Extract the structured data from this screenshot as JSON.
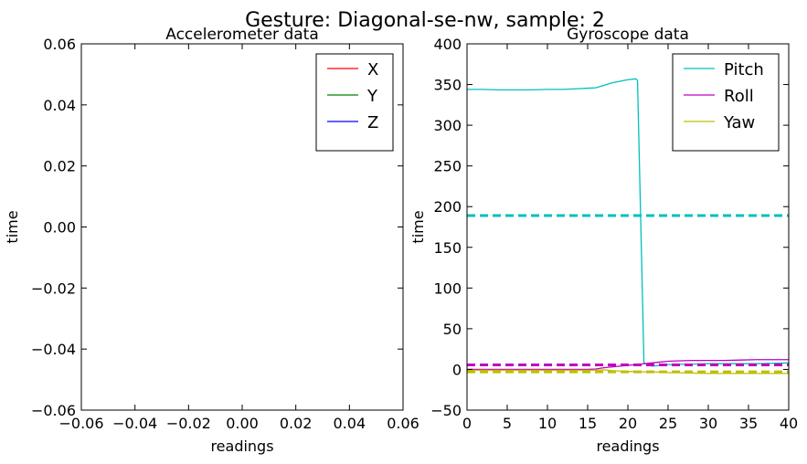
{
  "figure": {
    "title": "Gesture: Diagonal-se-nw, sample: 2"
  },
  "colors": {
    "X": "#ff0000",
    "Y": "#008000",
    "Z": "#0000ff",
    "Pitch": "#00bfbf",
    "Roll": "#bf00bf",
    "Yaw": "#bfbf00"
  },
  "chart_data": [
    {
      "type": "line",
      "title": "Accelerometer data",
      "xlabel": "readings",
      "ylabel": "time",
      "xlim": [
        -0.06,
        0.06
      ],
      "ylim": [
        -0.06,
        0.06
      ],
      "xticks": [
        "−0.06",
        "−0.04",
        "−0.02",
        "0.00",
        "0.02",
        "0.04",
        "0.06"
      ],
      "yticks": [
        "0.06",
        "0.04",
        "0.02",
        "0.00",
        "−0.02",
        "−0.04",
        "−0.06"
      ],
      "grid": false,
      "legend_position": "top-right",
      "series": [
        {
          "name": "X",
          "color": "#ff0000",
          "x": [],
          "y": []
        },
        {
          "name": "Y",
          "color": "#008000",
          "x": [],
          "y": []
        },
        {
          "name": "Z",
          "color": "#0000ff",
          "x": [],
          "y": []
        }
      ]
    },
    {
      "type": "line",
      "title": "Gyroscope data",
      "xlabel": "readings",
      "ylabel": "time",
      "xlim": [
        0,
        40
      ],
      "ylim": [
        -50,
        400
      ],
      "xticks": [
        "0",
        "5",
        "10",
        "15",
        "20",
        "25",
        "30",
        "35",
        "40"
      ],
      "yticks": [
        "400",
        "350",
        "300",
        "250",
        "200",
        "150",
        "100",
        "50",
        "0",
        "−50"
      ],
      "grid": false,
      "legend_position": "top-right",
      "series": [
        {
          "name": "Pitch",
          "color": "#00bfbf",
          "x": [
            0,
            2,
            4,
            6,
            8,
            10,
            12,
            14,
            15,
            16,
            17,
            18,
            19,
            20,
            21,
            21.2,
            22,
            23,
            24,
            25,
            26,
            27,
            28,
            30,
            32,
            34,
            36,
            38,
            40
          ],
          "y": [
            344,
            344,
            343.5,
            343.5,
            343.5,
            344,
            344,
            345,
            345.5,
            346,
            349,
            352,
            354,
            356,
            357,
            355,
            8,
            4,
            5,
            6,
            6,
            6.5,
            6.5,
            7,
            7,
            7,
            7,
            7.5,
            8
          ]
        },
        {
          "name": "Roll",
          "color": "#bf00bf",
          "x": [
            0,
            5,
            10,
            15,
            16,
            17,
            18,
            19,
            20,
            21,
            22,
            23,
            24,
            25,
            26,
            28,
            30,
            32,
            34,
            36,
            38,
            40
          ],
          "y": [
            0,
            0,
            0,
            0,
            0.5,
            2,
            3,
            4,
            5,
            6,
            7,
            8,
            9,
            10,
            10.5,
            11,
            11,
            11,
            11.5,
            12,
            12,
            12
          ]
        },
        {
          "name": "Yaw",
          "color": "#bfbf00",
          "x": [
            0,
            5,
            10,
            15,
            16,
            17,
            18,
            19,
            20,
            21,
            22,
            23,
            24,
            25,
            26,
            28,
            30,
            32,
            34,
            36,
            38,
            40
          ],
          "y": [
            -1,
            -1,
            -1,
            -1,
            -1,
            -0.5,
            -1.5,
            -2,
            -2.5,
            -2.5,
            -3,
            -3,
            -3.5,
            -4,
            -4,
            -4.5,
            -5,
            -5,
            -5,
            -5,
            -5,
            -5
          ]
        },
        {
          "name": "",
          "color": "#00bfbf",
          "dashed": true,
          "x": [
            0,
            40
          ],
          "y": [
            189,
            189
          ]
        },
        {
          "name": "",
          "color": "#bf00bf",
          "dashed": true,
          "x": [
            0,
            40
          ],
          "y": [
            5.5,
            5.5
          ]
        },
        {
          "name": "",
          "color": "#bfbf00",
          "dashed": true,
          "x": [
            0,
            40
          ],
          "y": [
            -3,
            -3
          ]
        }
      ]
    }
  ]
}
